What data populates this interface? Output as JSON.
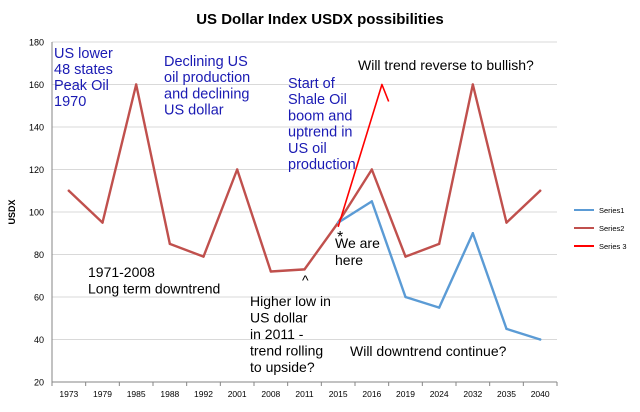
{
  "chart_data": {
    "type": "line",
    "title": "US Dollar Index USDX possibilities",
    "ylabel": "USDX",
    "xlabel": "",
    "ylim": [
      20,
      180
    ],
    "yticks": [
      20,
      40,
      60,
      80,
      100,
      120,
      140,
      160,
      180
    ],
    "grid": true,
    "legend_position": "right",
    "categories": [
      "1973",
      "1979",
      "1985",
      "1988",
      "1992",
      "2001",
      "2008",
      "2011",
      "2015",
      "2016",
      "2019",
      "2024",
      "2032",
      "2035",
      "2040"
    ],
    "series": [
      {
        "name": "Series1",
        "color": "#5b9bd5",
        "values": [
          null,
          null,
          null,
          null,
          null,
          null,
          null,
          null,
          95,
          105,
          60,
          55,
          90,
          45,
          40
        ]
      },
      {
        "name": "Series2",
        "color": "#c0504d",
        "values": [
          110,
          95,
          160,
          85,
          79,
          120,
          72,
          73,
          95,
          120,
          79,
          85,
          160,
          95,
          110
        ]
      },
      {
        "name": "Series 3",
        "color": "#ff0000",
        "points": [
          {
            "x": 8,
            "y": 93
          },
          {
            "x": 9.3,
            "y": 160
          },
          {
            "x": 9.5,
            "y": 152
          }
        ]
      }
    ],
    "annotations": [
      {
        "id": "peak-oil",
        "lines": [
          "US lower",
          "48 states",
          "Peak Oil",
          "1970"
        ],
        "color": "#1a1ab3"
      },
      {
        "id": "declining",
        "lines": [
          "Declining US",
          "oil production",
          "and declining",
          "US dollar"
        ],
        "color": "#1a1ab3"
      },
      {
        "id": "shale",
        "lines": [
          "Start of",
          "Shale Oil",
          "boom and",
          "uptrend in",
          "US oil",
          "production"
        ],
        "color": "#1a1ab3"
      },
      {
        "id": "bullish",
        "lines": [
          "Will trend reverse to bullish?"
        ],
        "color": "#000000"
      },
      {
        "id": "long-term",
        "lines": [
          "1971-2008",
          "Long term downtrend"
        ],
        "color": "#000000"
      },
      {
        "id": "we-are-here",
        "lines": [
          "We are",
          "here"
        ],
        "color": "#000000"
      },
      {
        "id": "higher-low",
        "lines": [
          "Higher low in",
          "US dollar",
          "in 2011 -",
          "trend rolling",
          "to upside?"
        ],
        "color": "#000000"
      },
      {
        "id": "downtrend",
        "lines": [
          "Will downtrend continue?"
        ],
        "color": "#000000"
      },
      {
        "id": "star-marker",
        "lines": [
          "*"
        ],
        "color": "#000000"
      },
      {
        "id": "caret-marker",
        "lines": [
          "^"
        ],
        "color": "#000000"
      }
    ]
  }
}
